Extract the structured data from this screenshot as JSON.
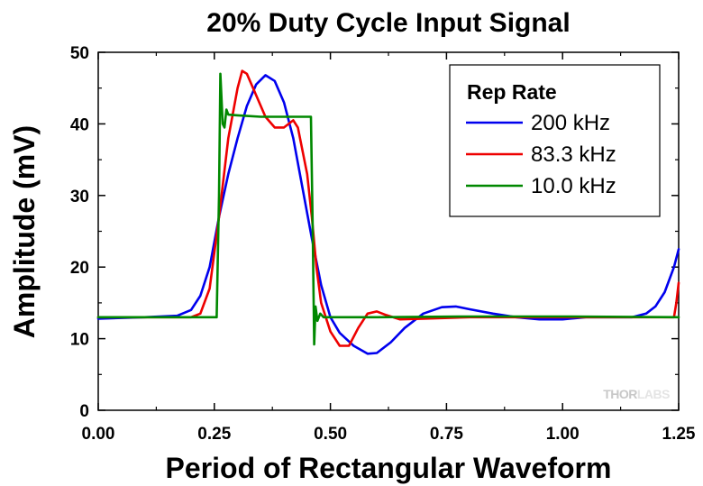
{
  "chart_data": {
    "type": "line",
    "title": "20% Duty Cycle Input Signal",
    "xlabel": "Period of Rectangular Waveform",
    "ylabel": "Amplitude (mV)",
    "xlim": [
      0,
      1.25
    ],
    "ylim": [
      0,
      50
    ],
    "x_ticks": [
      "0.00",
      "0.25",
      "0.50",
      "0.75",
      "1.00",
      "1.25"
    ],
    "y_ticks": [
      "0",
      "10",
      "20",
      "30",
      "40",
      "50"
    ],
    "grid": false,
    "legend": {
      "title": "Rep Rate",
      "placement": "top-right"
    },
    "watermark": {
      "dark": "THOR",
      "light": "LABS"
    },
    "series": [
      {
        "name": "200 kHz",
        "color": "#0000ee",
        "points": [
          [
            0.0,
            12.8
          ],
          [
            0.1,
            13.0
          ],
          [
            0.17,
            13.2
          ],
          [
            0.2,
            14.0
          ],
          [
            0.22,
            16.0
          ],
          [
            0.24,
            20.0
          ],
          [
            0.26,
            27.0
          ],
          [
            0.28,
            33.0
          ],
          [
            0.3,
            38.0
          ],
          [
            0.32,
            42.5
          ],
          [
            0.34,
            45.5
          ],
          [
            0.36,
            46.8
          ],
          [
            0.38,
            46.0
          ],
          [
            0.4,
            43.0
          ],
          [
            0.42,
            38.0
          ],
          [
            0.44,
            31.0
          ],
          [
            0.46,
            24.0
          ],
          [
            0.48,
            17.5
          ],
          [
            0.5,
            13.0
          ],
          [
            0.52,
            10.8
          ],
          [
            0.55,
            9.0
          ],
          [
            0.58,
            7.9
          ],
          [
            0.6,
            8.0
          ],
          [
            0.63,
            9.5
          ],
          [
            0.66,
            11.5
          ],
          [
            0.7,
            13.5
          ],
          [
            0.74,
            14.4
          ],
          [
            0.77,
            14.5
          ],
          [
            0.8,
            14.1
          ],
          [
            0.85,
            13.5
          ],
          [
            0.9,
            13.0
          ],
          [
            0.95,
            12.7
          ],
          [
            1.0,
            12.7
          ],
          [
            1.05,
            13.0
          ],
          [
            1.1,
            13.0
          ],
          [
            1.15,
            13.0
          ],
          [
            1.18,
            13.5
          ],
          [
            1.2,
            14.5
          ],
          [
            1.22,
            16.5
          ],
          [
            1.24,
            20.0
          ],
          [
            1.25,
            22.5
          ]
        ]
      },
      {
        "name": "83.3 kHz",
        "color": "#ee0000",
        "points": [
          [
            0.0,
            13.0
          ],
          [
            0.2,
            13.0
          ],
          [
            0.22,
            13.5
          ],
          [
            0.24,
            17.0
          ],
          [
            0.26,
            27.0
          ],
          [
            0.28,
            38.0
          ],
          [
            0.3,
            45.0
          ],
          [
            0.31,
            47.4
          ],
          [
            0.32,
            47.0
          ],
          [
            0.34,
            44.0
          ],
          [
            0.36,
            41.0
          ],
          [
            0.38,
            39.5
          ],
          [
            0.4,
            39.5
          ],
          [
            0.42,
            40.5
          ],
          [
            0.43,
            39.5
          ],
          [
            0.45,
            33.0
          ],
          [
            0.46,
            27.0
          ],
          [
            0.47,
            20.0
          ],
          [
            0.48,
            15.0
          ],
          [
            0.5,
            11.0
          ],
          [
            0.52,
            9.0
          ],
          [
            0.54,
            9.0
          ],
          [
            0.56,
            11.5
          ],
          [
            0.58,
            13.5
          ],
          [
            0.6,
            13.8
          ],
          [
            0.62,
            13.3
          ],
          [
            0.65,
            12.7
          ],
          [
            0.7,
            12.8
          ],
          [
            0.8,
            13.0
          ],
          [
            1.0,
            13.0
          ],
          [
            1.15,
            13.0
          ],
          [
            1.24,
            13.0
          ],
          [
            1.245,
            15.0
          ],
          [
            1.25,
            17.8
          ]
        ]
      },
      {
        "name": "10.0 kHz",
        "color": "#008800",
        "points": [
          [
            0.0,
            13.0
          ],
          [
            0.255,
            13.0
          ],
          [
            0.26,
            30.0
          ],
          [
            0.263,
            47.0
          ],
          [
            0.268,
            40.0
          ],
          [
            0.272,
            39.5
          ],
          [
            0.276,
            42.0
          ],
          [
            0.28,
            41.3
          ],
          [
            0.3,
            41.2
          ],
          [
            0.35,
            41.0
          ],
          [
            0.4,
            41.0
          ],
          [
            0.45,
            41.0
          ],
          [
            0.458,
            41.0
          ],
          [
            0.462,
            25.0
          ],
          [
            0.465,
            9.2
          ],
          [
            0.468,
            14.5
          ],
          [
            0.472,
            12.5
          ],
          [
            0.478,
            13.5
          ],
          [
            0.485,
            13.0
          ],
          [
            0.6,
            13.0
          ],
          [
            0.8,
            13.1
          ],
          [
            1.0,
            13.1
          ],
          [
            1.25,
            13.0
          ]
        ]
      }
    ]
  }
}
